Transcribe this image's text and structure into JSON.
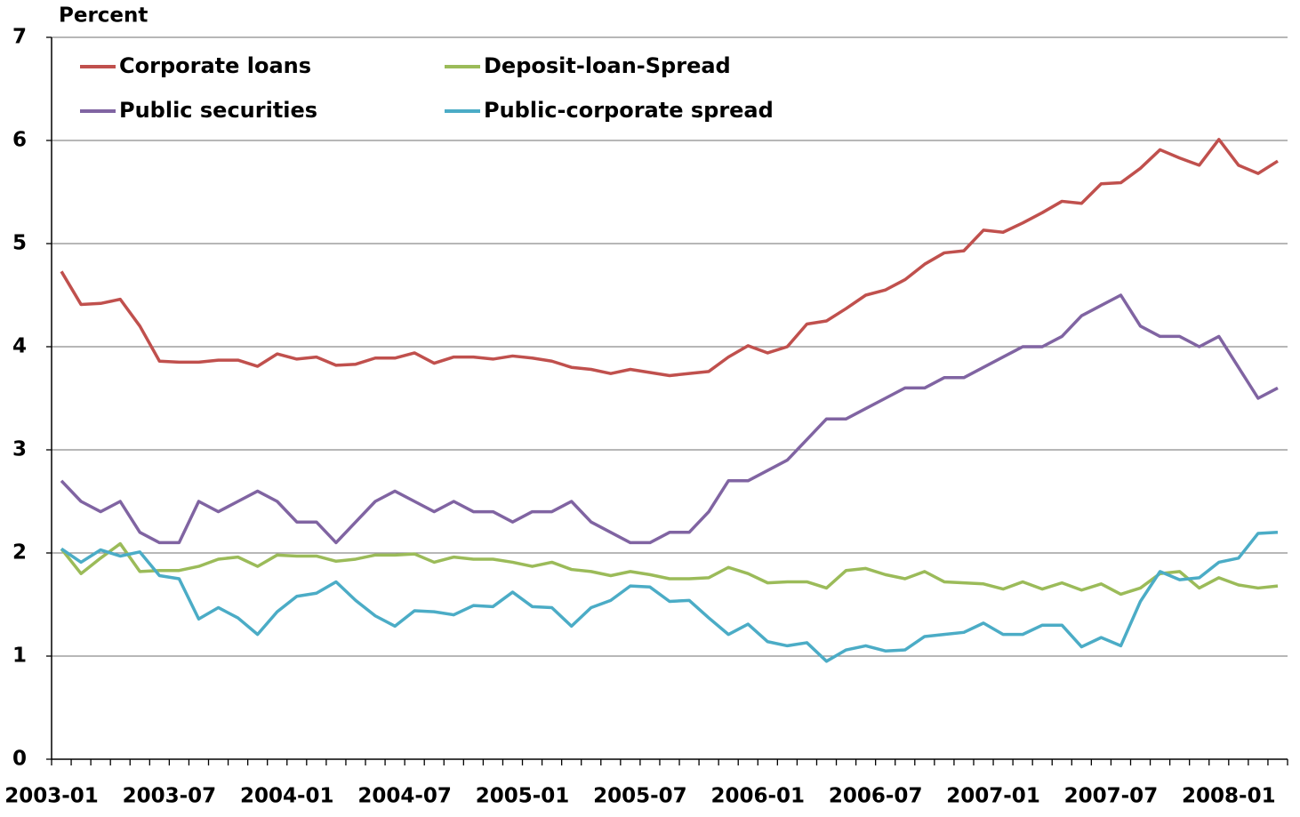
{
  "chart_data": {
    "type": "line",
    "y_label": "Percent",
    "categories": [
      "2003-01",
      null,
      null,
      null,
      null,
      null,
      "2003-07",
      null,
      null,
      null,
      null,
      null,
      "2004-01",
      null,
      null,
      null,
      null,
      null,
      "2004-07",
      null,
      null,
      null,
      null,
      null,
      "2005-01",
      null,
      null,
      null,
      null,
      null,
      "2005-07",
      null,
      null,
      null,
      null,
      null,
      "2006-01",
      null,
      null,
      null,
      null,
      null,
      "2006-07",
      null,
      null,
      null,
      null,
      null,
      "2007-01",
      null,
      null,
      null,
      null,
      null,
      "2007-07",
      null,
      null,
      null,
      null,
      null,
      "2008-01",
      null,
      null
    ],
    "ylim": [
      0,
      7
    ],
    "yticks": [
      0,
      1,
      2,
      3,
      4,
      5,
      6,
      7
    ],
    "grid": true,
    "series": [
      {
        "name": "Corporate loans",
        "color": "#c0504d",
        "values": [
          4.73,
          4.41,
          4.42,
          4.46,
          4.2,
          3.86,
          3.85,
          3.85,
          3.87,
          3.87,
          3.81,
          3.93,
          3.88,
          3.9,
          3.82,
          3.83,
          3.89,
          3.89,
          3.94,
          3.84,
          3.9,
          3.9,
          3.88,
          3.91,
          3.89,
          3.86,
          3.8,
          3.78,
          3.74,
          3.78,
          3.75,
          3.72,
          3.74,
          3.76,
          3.9,
          4.01,
          3.94,
          4.0,
          4.22,
          4.25,
          4.37,
          4.5,
          4.55,
          4.65,
          4.8,
          4.91,
          4.93,
          5.13,
          5.11,
          5.2,
          5.3,
          5.41,
          5.39,
          5.58,
          5.59,
          5.73,
          5.91,
          5.83,
          5.76,
          6.01,
          5.76,
          5.68,
          5.8
        ]
      },
      {
        "name": "Deposit-loan-Spread",
        "color": "#9bbb59",
        "values": [
          2.04,
          1.8,
          1.95,
          2.09,
          1.82,
          1.83,
          1.83,
          1.87,
          1.94,
          1.96,
          1.87,
          1.98,
          1.97,
          1.97,
          1.92,
          1.94,
          1.98,
          1.98,
          1.99,
          1.91,
          1.96,
          1.94,
          1.94,
          1.91,
          1.87,
          1.91,
          1.84,
          1.82,
          1.78,
          1.82,
          1.79,
          1.75,
          1.75,
          1.76,
          1.86,
          1.8,
          1.71,
          1.72,
          1.72,
          1.66,
          1.83,
          1.85,
          1.79,
          1.75,
          1.82,
          1.72,
          1.71,
          1.7,
          1.65,
          1.72,
          1.65,
          1.71,
          1.64,
          1.7,
          1.6,
          1.66,
          1.8,
          1.82,
          1.66,
          1.76,
          1.69,
          1.66,
          1.68
        ]
      },
      {
        "name": "Public securities",
        "color": "#8064a2",
        "values": [
          2.7,
          2.5,
          2.4,
          2.5,
          2.2,
          2.1,
          2.1,
          2.5,
          2.4,
          2.5,
          2.6,
          2.5,
          2.3,
          2.3,
          2.1,
          2.3,
          2.5,
          2.6,
          2.5,
          2.4,
          2.5,
          2.4,
          2.4,
          2.3,
          2.4,
          2.4,
          2.5,
          2.3,
          2.2,
          2.1,
          2.1,
          2.2,
          2.2,
          2.4,
          2.7,
          2.7,
          2.8,
          2.9,
          3.1,
          3.3,
          3.3,
          3.4,
          3.5,
          3.6,
          3.6,
          3.7,
          3.7,
          3.8,
          3.9,
          4.0,
          4.0,
          4.1,
          4.3,
          4.4,
          4.5,
          4.2,
          4.1,
          4.1,
          4.0,
          4.1,
          3.8,
          3.5,
          3.6
        ]
      },
      {
        "name": "Public-corporate spread",
        "color": "#4bacc6",
        "values": [
          2.04,
          1.91,
          2.03,
          1.97,
          2.01,
          1.78,
          1.75,
          1.36,
          1.47,
          1.37,
          1.21,
          1.43,
          1.58,
          1.61,
          1.72,
          1.54,
          1.39,
          1.29,
          1.44,
          1.43,
          1.4,
          1.49,
          1.48,
          1.62,
          1.48,
          1.47,
          1.29,
          1.47,
          1.54,
          1.68,
          1.67,
          1.53,
          1.54,
          1.37,
          1.21,
          1.31,
          1.14,
          1.1,
          1.13,
          0.95,
          1.06,
          1.1,
          1.05,
          1.06,
          1.19,
          1.21,
          1.23,
          1.32,
          1.21,
          1.21,
          1.3,
          1.3,
          1.09,
          1.18,
          1.1,
          1.53,
          1.82,
          1.74,
          1.76,
          1.91,
          1.95,
          2.19,
          2.2
        ]
      }
    ]
  }
}
